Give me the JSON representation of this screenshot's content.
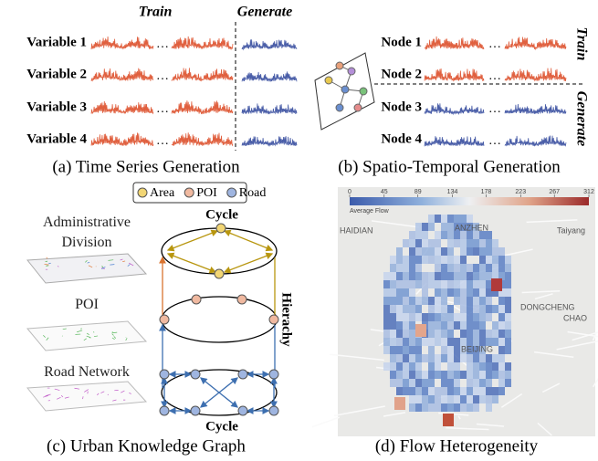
{
  "panel_a": {
    "train_label": "Train",
    "generate_label": "Generate",
    "variables": [
      "Variable 1",
      "Variable 2",
      "Variable 3",
      "Variable 4"
    ],
    "ellipsis": "…",
    "caption": "(a) Time Series Generation"
  },
  "panel_b": {
    "nodes": [
      "Node 1",
      "Node 2",
      "Node 3",
      "Node 4"
    ],
    "train_label": "Train",
    "generate_label": "Generate",
    "ellipsis": "…",
    "caption": "(b) Spatio-Temporal Generation"
  },
  "panel_c": {
    "legend": [
      "Area",
      "POI",
      "Road"
    ],
    "cycle_top": "Cycle",
    "cycle_bottom": "Cycle",
    "hierarchy": "Hierachy",
    "layers": [
      "Administrative Division",
      "POI",
      "Road Network"
    ],
    "caption": "(c) Urban Knowledge Graph"
  },
  "panel_d": {
    "colorbar": {
      "ticks": [
        0,
        45,
        89,
        134,
        178,
        223,
        267,
        312
      ],
      "label": "Average Flow"
    },
    "places": [
      "HAIDIAN",
      "ANZHEN",
      "Taiyang",
      "DONGCHENG",
      "CHAO",
      "BEIJING"
    ],
    "caption": "(d) Flow Heterogeneity"
  }
}
